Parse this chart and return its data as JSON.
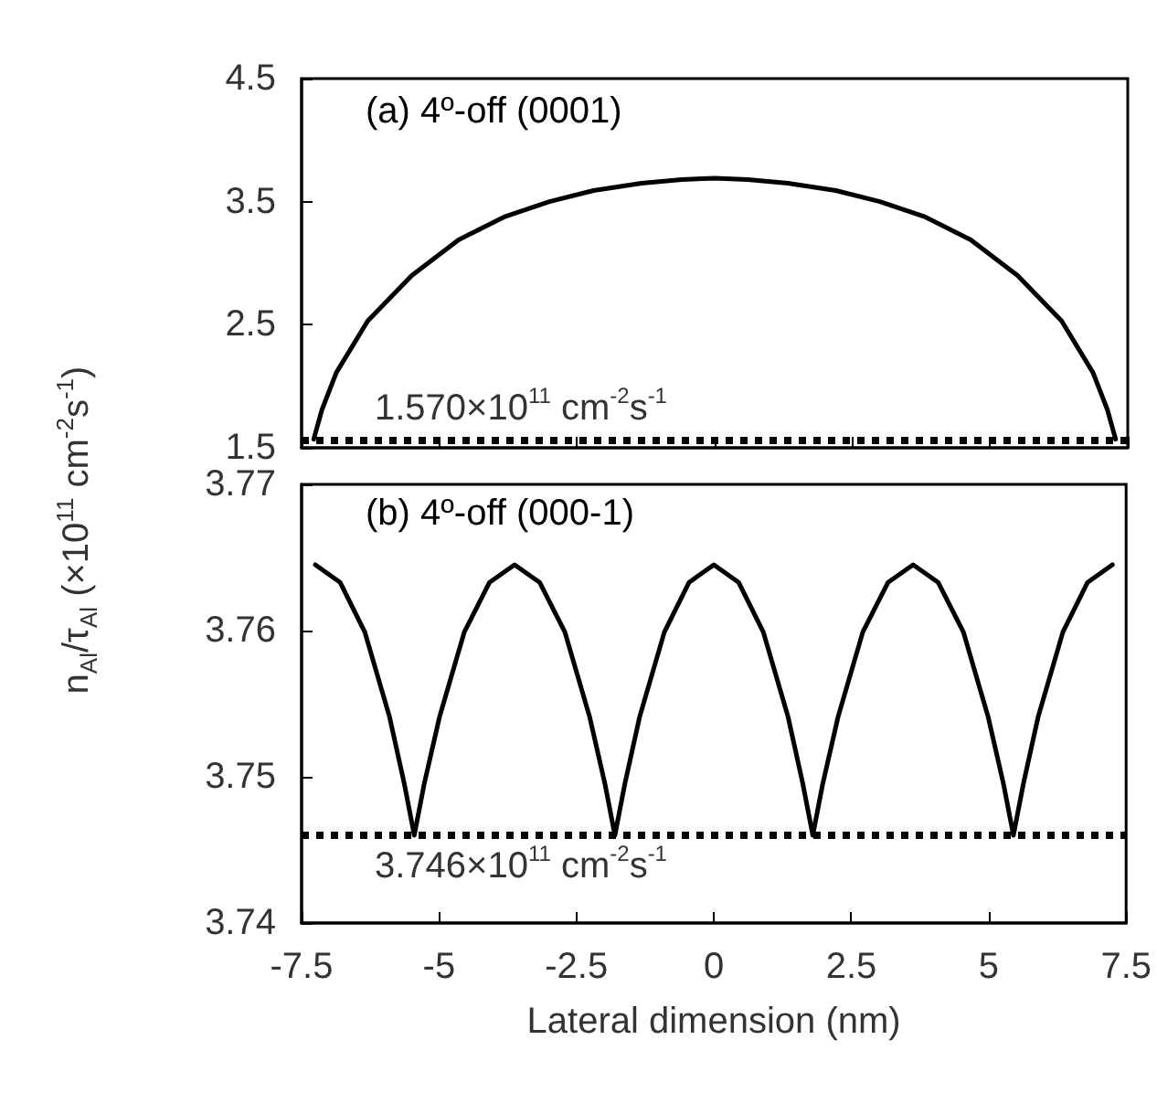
{
  "chart_data": [
    {
      "type": "line",
      "title": "(a) 4º-off (0001)",
      "ylabel": "n$_{Al}$/τ$_{Al}$ (×10$^{11}$ cm$^{-2}$s$^{-1}$)",
      "x": [
        -7.28,
        -7.13,
        -6.87,
        -6.3,
        -5.5,
        -4.65,
        -3.8,
        -3.0,
        -2.2,
        -1.33,
        -0.6,
        0,
        0.6,
        1.33,
        2.2,
        3.0,
        3.8,
        4.65,
        5.5,
        6.3,
        6.87,
        7.13,
        7.28
      ],
      "series": [
        {
          "color": "#000000",
          "values": [
            1.57,
            1.81,
            2.11,
            2.53,
            2.9,
            3.19,
            3.38,
            3.5,
            3.59,
            3.65,
            3.68,
            3.69,
            3.68,
            3.65,
            3.59,
            3.5,
            3.38,
            3.19,
            2.9,
            2.53,
            2.11,
            1.81,
            1.57
          ]
        }
      ],
      "xlim": [
        -7.5,
        7.5
      ],
      "xticks": [
        -7.5,
        -5,
        -2.5,
        0,
        2.5,
        5,
        7.5
      ],
      "ylim": [
        1.5,
        4.5
      ],
      "yticks": [
        1.5,
        2.5,
        3.5,
        4.5
      ],
      "tick_labels": "y",
      "ref_lines": [
        {
          "axis": "y",
          "value": 1.57,
          "label": "1.570×10$^{11}$ cm$^{-2}$s$^{-1}$",
          "color": "#000000",
          "line_style": "dotted"
        }
      ],
      "grid": false,
      "marker": "none",
      "line_style": "solid"
    },
    {
      "type": "line",
      "title": "(b) 4º-off (000-1)",
      "xlabel": "Lateral dimension (nm)",
      "x": [
        -7.25,
        -6.8,
        -6.35,
        -5.9,
        -5.63,
        -5.45,
        -5.27,
        -4.99,
        -4.54,
        -4.08,
        -3.625,
        -3.17,
        -2.71,
        -2.26,
        -1.98,
        -1.8,
        -1.62,
        -1.35,
        -0.9,
        -0.45,
        0,
        0.45,
        0.9,
        1.35,
        1.62,
        1.8,
        1.98,
        2.26,
        2.71,
        3.17,
        3.625,
        4.08,
        4.54,
        4.99,
        5.27,
        5.45,
        5.63,
        5.9,
        6.35,
        6.8,
        7.25
      ],
      "series": [
        {
          "color": "#000000",
          "values": [
            3.7645,
            3.7633,
            3.7599,
            3.7541,
            3.7495,
            3.746,
            3.7495,
            3.7541,
            3.7599,
            3.7633,
            3.7645,
            3.7633,
            3.7599,
            3.7541,
            3.7495,
            3.746,
            3.7495,
            3.7541,
            3.7599,
            3.7633,
            3.7645,
            3.7633,
            3.7599,
            3.7541,
            3.7495,
            3.746,
            3.7495,
            3.7541,
            3.7599,
            3.7633,
            3.7645,
            3.7633,
            3.7599,
            3.7541,
            3.7495,
            3.746,
            3.7495,
            3.7541,
            3.7599,
            3.7633,
            3.7645
          ]
        }
      ],
      "xlim": [
        -7.5,
        7.5
      ],
      "xticks": [
        -7.5,
        -5,
        -2.5,
        0,
        2.5,
        5,
        7.5
      ],
      "ylim": [
        3.74,
        3.77
      ],
      "yticks": [
        3.74,
        3.75,
        3.76,
        3.77
      ],
      "ref_lines": [
        {
          "axis": "y",
          "value": 3.746,
          "label": "3.746×10$^{11}$ cm$^{-2}$s$^{-1}$",
          "color": "#000000",
          "line_style": "dotted"
        }
      ],
      "grid": false,
      "marker": "none",
      "line_style": "solid"
    }
  ]
}
